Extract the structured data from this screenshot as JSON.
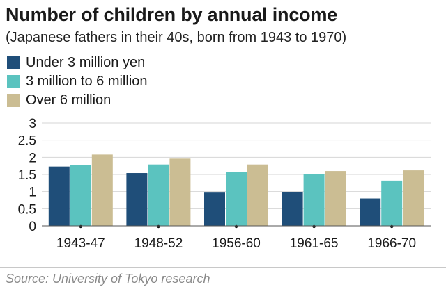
{
  "chart_data": {
    "type": "bar",
    "title": "Number of children by annual income",
    "subtitle": "(Japanese fathers in their 40s, born from 1943 to 1970)",
    "categories": [
      "1943-47",
      "1948-52",
      "1956-60",
      "1961-65",
      "1966-70"
    ],
    "series": [
      {
        "name": "Under 3 million yen",
        "color": "#1f4e79",
        "values": [
          1.73,
          1.54,
          0.97,
          0.98,
          0.8
        ]
      },
      {
        "name": "3 million to 6 million",
        "color": "#5bc3bf",
        "values": [
          1.78,
          1.79,
          1.57,
          1.51,
          1.32
        ]
      },
      {
        "name": "Over 6 million",
        "color": "#cbbd93",
        "values": [
          2.08,
          1.96,
          1.79,
          1.6,
          1.62
        ]
      }
    ],
    "y_ticks": [
      "0",
      "0.5",
      "1",
      "1.5",
      "2",
      "2.5",
      "3"
    ],
    "ylim": [
      0,
      3
    ],
    "xlabel": "",
    "ylabel": "",
    "grid": true,
    "legend_position": "top-left"
  },
  "source": "Source: University of Tokyo research"
}
